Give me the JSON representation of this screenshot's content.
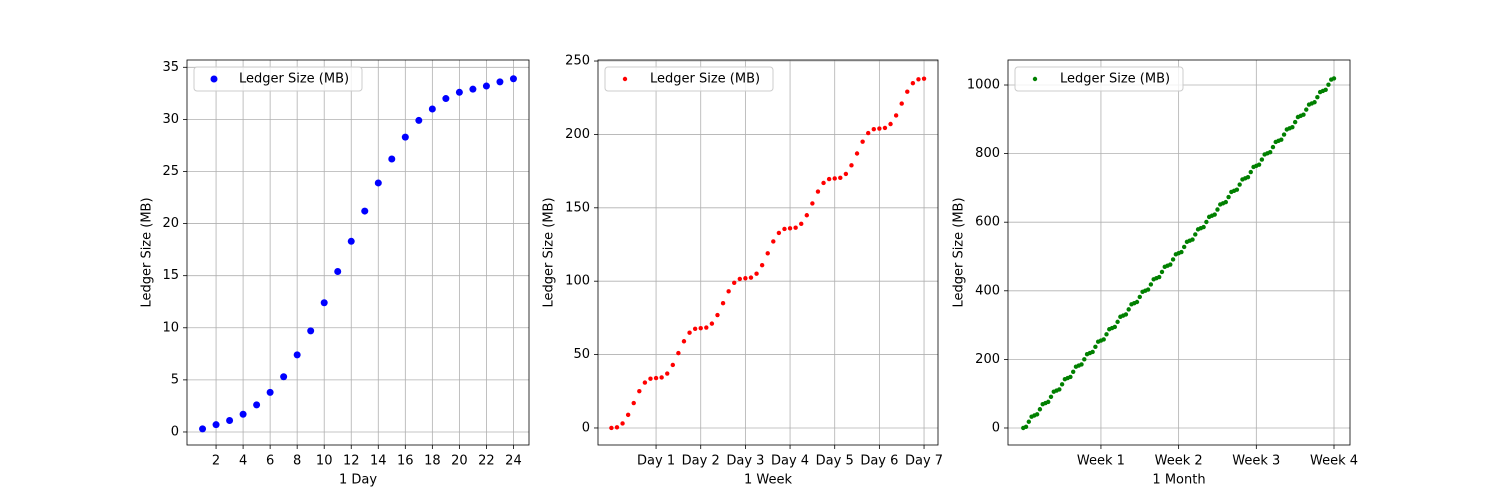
{
  "chart_data": [
    {
      "type": "scatter",
      "xlabel": "1 Day",
      "ylabel": "Ledger Size (MB)",
      "grid": true,
      "legend": "upper left",
      "x": [
        1,
        2,
        3,
        4,
        5,
        6,
        7,
        8,
        9,
        10,
        11,
        12,
        13,
        14,
        15,
        16,
        17,
        18,
        19,
        20,
        21,
        22,
        23,
        24
      ],
      "series": [
        {
          "name": "Ledger Size (MB)",
          "color": "#0000ff",
          "values": [
            0.3,
            0.7,
            1.1,
            1.7,
            2.6,
            3.8,
            5.3,
            7.4,
            9.7,
            12.4,
            15.4,
            18.3,
            21.2,
            23.9,
            26.2,
            28.3,
            29.9,
            31.0,
            32.0,
            32.6,
            32.9,
            33.2,
            33.6,
            33.9
          ]
        }
      ],
      "xlim": [
        -0.15,
        25.15
      ],
      "ylim": [
        -1.25,
        35.7
      ],
      "xticks": [
        2,
        4,
        6,
        8,
        10,
        12,
        14,
        16,
        18,
        20,
        22,
        24
      ],
      "yticks": [
        0,
        5,
        10,
        15,
        20,
        25,
        30,
        35
      ]
    },
    {
      "type": "scatter",
      "xlabel": "1 Week",
      "ylabel": "Ledger Size (MB)",
      "grid": true,
      "legend": "upper left",
      "x": [
        0,
        3,
        6,
        9,
        12,
        15,
        18,
        21,
        24,
        27,
        30,
        33,
        36,
        39,
        42,
        45,
        48,
        51,
        54,
        57,
        60,
        63,
        66,
        69,
        72,
        75,
        78,
        81,
        84,
        87,
        90,
        93,
        96,
        99,
        102,
        105,
        108,
        111,
        114,
        117,
        120,
        123,
        126,
        129,
        132,
        135,
        138,
        141,
        144,
        147,
        150,
        153,
        156,
        159,
        162,
        165,
        168
      ],
      "series": [
        {
          "name": "Ledger Size (MB)",
          "color": "#ff0000",
          "values": [
            0,
            0.43,
            3.09,
            8.93,
            17,
            25.08,
            30.91,
            33.57,
            34,
            34.43,
            37.09,
            42.93,
            51,
            59.08,
            64.91,
            67.57,
            68,
            68.43,
            71.09,
            76.93,
            85,
            93.08,
            98.91,
            101.57,
            102,
            102.43,
            105.09,
            110.93,
            119,
            127.08,
            132.91,
            135.57,
            136,
            136.43,
            139.09,
            144.93,
            153,
            161.08,
            166.91,
            169.57,
            170,
            170.43,
            173.09,
            178.93,
            187,
            195.08,
            200.91,
            203.57,
            204,
            204.43,
            207.09,
            212.93,
            221,
            229.08,
            234.91,
            237.57,
            238
          ]
        }
      ],
      "xlim": [
        -7.2,
        175.5
      ],
      "ylim": [
        -11.6,
        250.7
      ],
      "xticks": [
        {
          "value": 24,
          "label": "Day 1"
        },
        {
          "value": 48,
          "label": "Day 2"
        },
        {
          "value": 72,
          "label": "Day 3"
        },
        {
          "value": 96,
          "label": "Day 4"
        },
        {
          "value": 120,
          "label": "Day 5"
        },
        {
          "value": 144,
          "label": "Day 6"
        },
        {
          "value": 168,
          "label": "Day 7"
        }
      ],
      "yticks": [
        0,
        50,
        100,
        150,
        200,
        250
      ]
    },
    {
      "type": "scatter",
      "xlabel": "1 Month",
      "ylabel": "Ledger Size (MB)",
      "grid": true,
      "legend": "upper left",
      "x": [
        0,
        6,
        12,
        18,
        24,
        30,
        36,
        42,
        48,
        54,
        60,
        66,
        72,
        78,
        84,
        90,
        96,
        102,
        108,
        114,
        120,
        126,
        132,
        138,
        144,
        150,
        156,
        162,
        168,
        174,
        180,
        186,
        192,
        198,
        204,
        210,
        216,
        222,
        228,
        234,
        240,
        246,
        252,
        258,
        264,
        270,
        276,
        282,
        288,
        294,
        300,
        306,
        312,
        318,
        324,
        330,
        336,
        342,
        348,
        354,
        360,
        366,
        372,
        378,
        384,
        390,
        396,
        402,
        408,
        414,
        420,
        426,
        432,
        438,
        444,
        450,
        456,
        462,
        468,
        474,
        480,
        486,
        492,
        498,
        504,
        510,
        516,
        522,
        528,
        534,
        540,
        546,
        552,
        558,
        564,
        570,
        576,
        582,
        588,
        594,
        600,
        606,
        612,
        618,
        624,
        630,
        636,
        642,
        648,
        654,
        660,
        666,
        672
      ],
      "series": [
        {
          "name": "Ledger Size (MB)",
          "color": "#008000",
          "values": [
            0,
            3.31,
            18.2,
            33.09,
            36.4,
            39.71,
            54.6,
            69.49,
            72.8,
            76.11,
            91,
            105.89,
            109.2,
            112.51,
            127.4,
            142.29,
            145.6,
            148.91,
            163.8,
            178.69,
            182,
            185.31,
            200.2,
            215.09,
            218.4,
            221.71,
            236.6,
            251.49,
            254.8,
            258.11,
            273,
            287.89,
            291.2,
            294.51,
            309.4,
            324.29,
            327.6,
            330.91,
            345.8,
            360.69,
            364,
            367.31,
            382.2,
            397.09,
            400.4,
            403.71,
            418.6,
            433.49,
            436.8,
            440.11,
            455,
            469.89,
            473.2,
            476.51,
            491.4,
            506.29,
            509.6,
            512.91,
            527.8,
            542.69,
            546,
            549.31,
            564.2,
            579.09,
            582.4,
            585.71,
            600.6,
            615.49,
            618.8,
            622.11,
            637,
            651.89,
            655.2,
            658.51,
            673.4,
            688.29,
            691.6,
            694.91,
            709.8,
            724.69,
            728,
            731.31,
            746.2,
            761.09,
            764.4,
            767.71,
            782.6,
            797.49,
            800.8,
            804.11,
            819,
            833.89,
            837.2,
            840.51,
            855.4,
            870.29,
            873.6,
            876.91,
            891.8,
            906.69,
            910,
            913.31,
            928.2,
            943.09,
            946.4,
            949.71,
            964.6,
            979.49,
            982.8,
            986.11,
            1001,
            1015.89,
            1019.2
          ]
        }
      ],
      "xlim": [
        -33,
        706.6
      ],
      "ylim": [
        -49.6,
        1072.9
      ],
      "xticks": [
        {
          "value": 168,
          "label": "Week 1"
        },
        {
          "value": 336,
          "label": "Week 2"
        },
        {
          "value": 504,
          "label": "Week 3"
        },
        {
          "value": 672,
          "label": "Week 4"
        }
      ],
      "yticks": [
        0,
        200,
        400,
        600,
        800,
        1000
      ]
    }
  ]
}
